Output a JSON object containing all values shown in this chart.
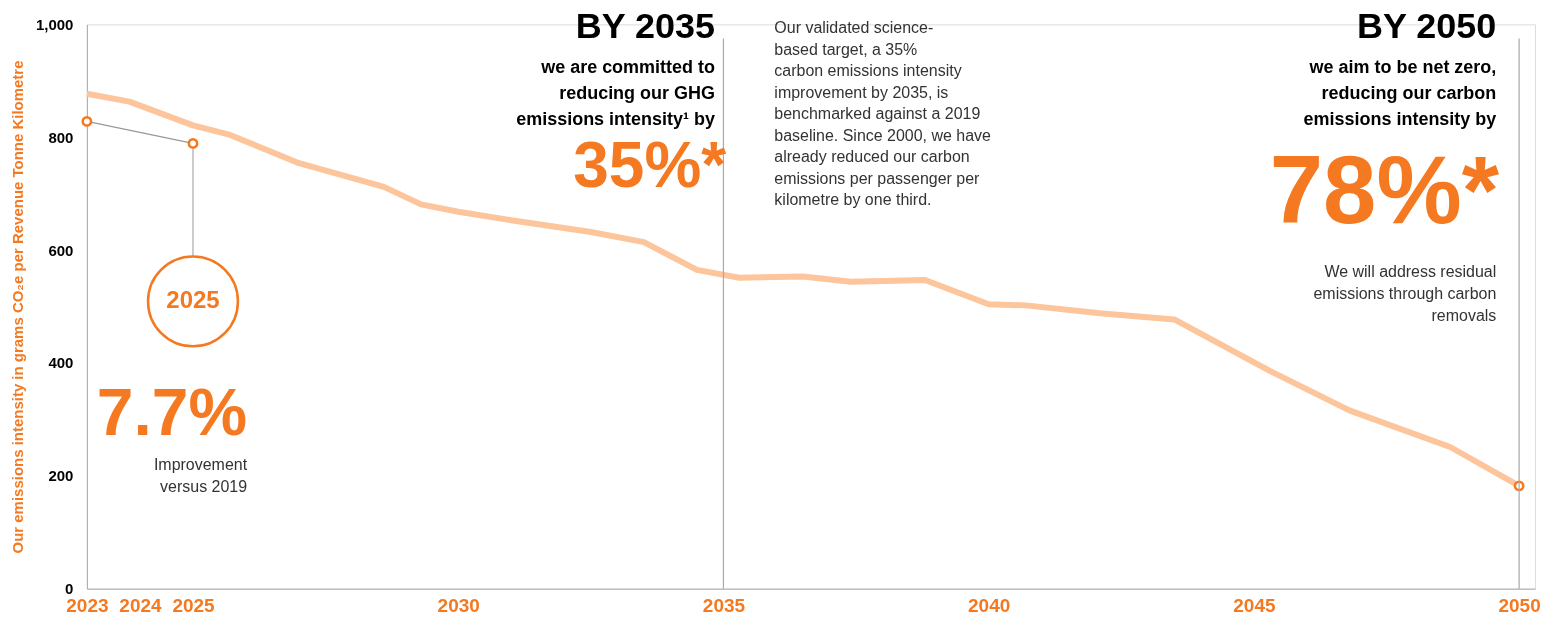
{
  "chart_data": {
    "type": "line",
    "ylabel": "Our emissions intensity in grams CO₂e per Revenue Tonne Kilometre",
    "xlim": [
      2023,
      2050.3
    ],
    "xticks": [
      2023,
      2024,
      2025,
      2030,
      2035,
      2040,
      2045,
      2050
    ],
    "ylim": [
      0,
      1000
    ],
    "yticks": [
      0,
      200,
      400,
      600,
      800,
      {
        "value": 1000,
        "label": "1,000"
      }
    ],
    "grid": false,
    "series": [
      {
        "color": "#fdc59c",
        "marker": "none",
        "x": [
          2023,
          2023.8,
          2025,
          2025.7,
          2027,
          2028.6,
          2029.3,
          2030,
          2031,
          2032.5,
          2033.5,
          2034.5,
          2035.3,
          2036.5,
          2037.4,
          2038.8,
          2040,
          2040.7,
          2042.1,
          2043.5,
          2045.3,
          2046.8,
          2048.7,
          2050
        ],
        "values": [
          877,
          863,
          821,
          804,
          754,
          712,
          681,
          668,
          653,
          632,
          614,
          565,
          551,
          553,
          544,
          547,
          504,
          502,
          488,
          477,
          386,
          316,
          251,
          182
        ]
      },
      {
        "type": "line",
        "color": "#f47920",
        "marker": "circle",
        "x": [
          2023,
          2025
        ],
        "values": [
          828,
          789
        ]
      },
      {
        "type": "scatter",
        "color": "#f47920",
        "marker": "circle",
        "x": [
          2050
        ],
        "values": [
          182
        ]
      }
    ],
    "ref_lines": [
      {
        "axis": "x",
        "value": 2035,
        "color": "#aaaaaa"
      },
      {
        "axis": "x",
        "value": 2050,
        "color": "#aaaaaa"
      }
    ],
    "annotations": [
      {
        "text": "2025",
        "x": 2025,
        "y": 789
      },
      "7.7%",
      "Improvement\nversus 2019",
      "BY 2035",
      "we are committed to\nreducing our GHG\nemissions intensity¹ by",
      "35%*",
      "Our validated science-\nbased target, a 35%\ncarbon emissions intensity\nimprovement by 2035, is\nbenchmarked against a 2019\nbaseline. Since 2000, we have\nalready reduced our carbon\nemissions per passenger per\nkilometre by one third.",
      "BY 2050",
      "we aim to be net zero,\nreducing our carbon\nemissions intensity by",
      "78%*",
      "We will address residual\nemissions through carbon\nremovals"
    ]
  }
}
